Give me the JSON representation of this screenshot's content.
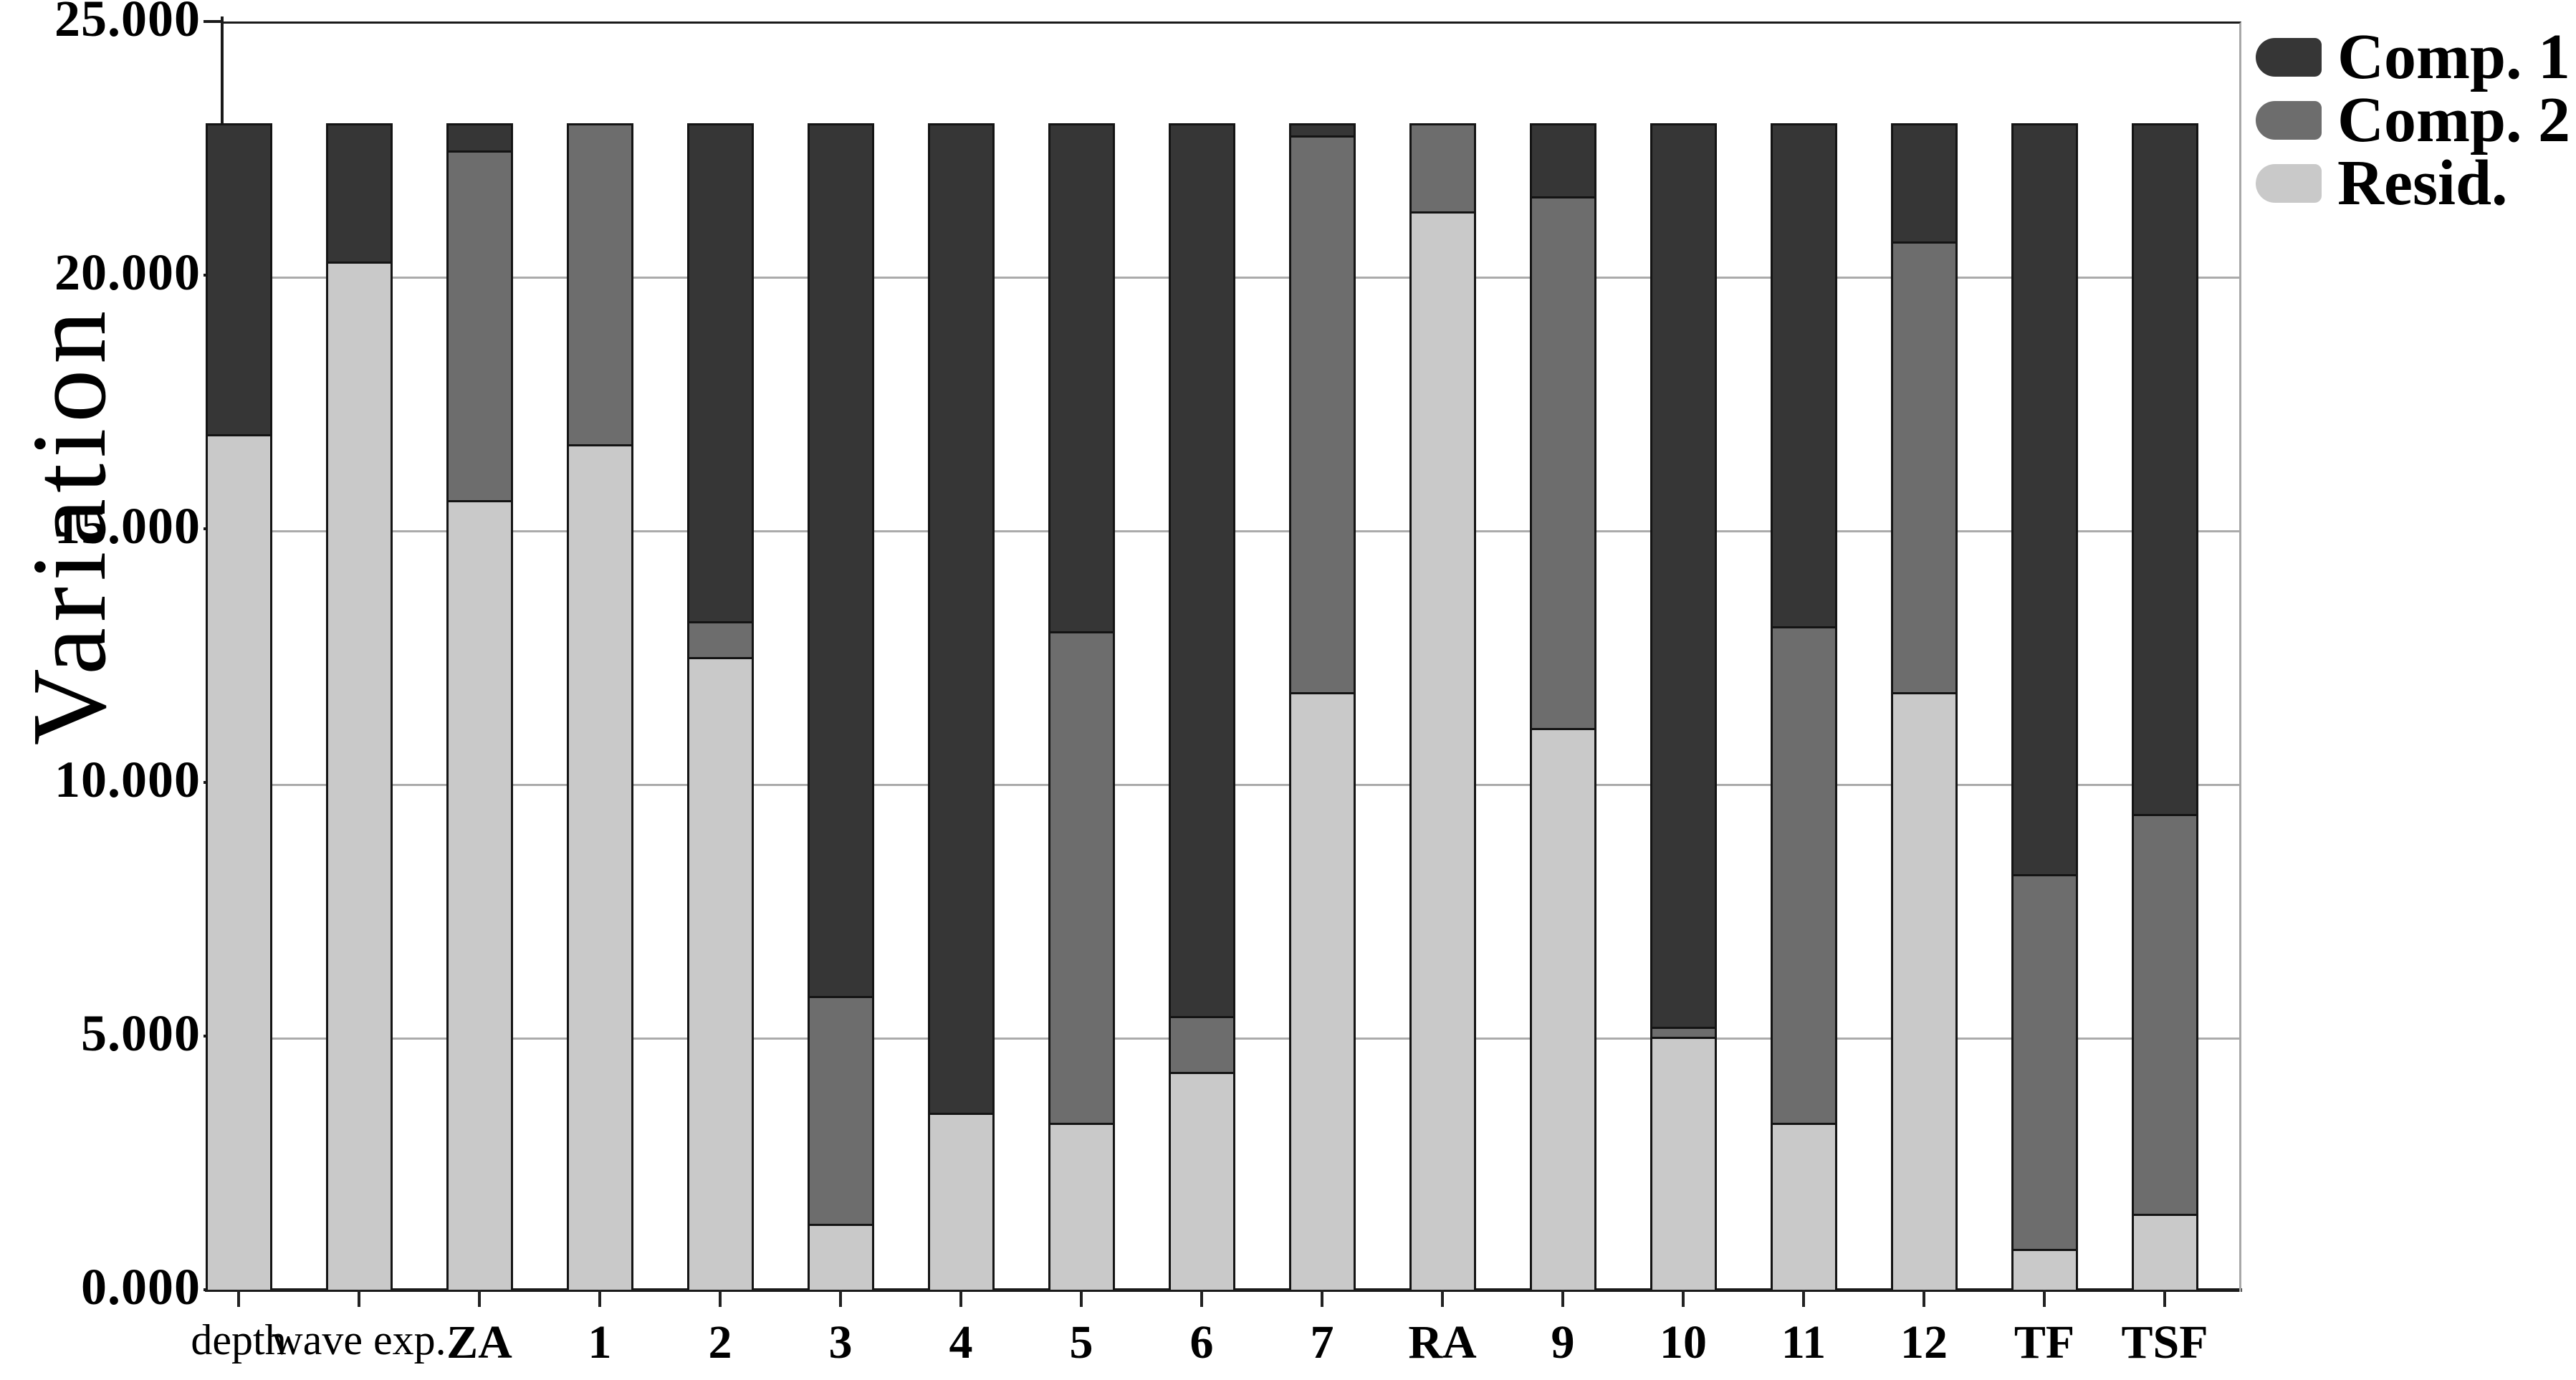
{
  "chart_data": {
    "type": "bar",
    "stacked": true,
    "title": "",
    "xlabel": "",
    "ylabel": "Variation",
    "ylim": [
      0,
      25
    ],
    "ytick_labels": [
      "0.000",
      "5.000",
      "10.000",
      "15.000",
      "20.000",
      "25.000"
    ],
    "yminor_tick_step": 2.5,
    "grid": true,
    "legend_position": "top-right",
    "bar_total": 23.0,
    "categories": [
      "depth",
      "wave exp.",
      "ZA",
      "1",
      "2",
      "3",
      "4",
      "5",
      "6",
      "7",
      "RA",
      "9",
      "10",
      "11",
      "12",
      "TF",
      "TSF"
    ],
    "category_label_styles": [
      "plain",
      "plain",
      "bold",
      "bold",
      "bold",
      "bold",
      "bold",
      "bold",
      "bold",
      "bold",
      "bold",
      "bold",
      "bold",
      "bold",
      "bold",
      "bold",
      "bold"
    ],
    "series": [
      {
        "name": "Comp. 1",
        "color": "#363636",
        "values": [
          6.1,
          2.7,
          0.5,
          0.0,
          9.8,
          17.2,
          19.5,
          10.0,
          17.6,
          0.2,
          0.0,
          1.4,
          17.8,
          9.9,
          2.3,
          14.8,
          13.6
        ]
      },
      {
        "name": "Comp. 2",
        "color": "#6d6d6d",
        "values": [
          0.0,
          0.0,
          6.9,
          6.3,
          0.7,
          4.5,
          0.0,
          9.7,
          1.1,
          11.0,
          1.7,
          10.5,
          0.2,
          9.8,
          8.9,
          7.4,
          7.9
        ]
      },
      {
        "name": "Resid.",
        "color": "#c9c9c9",
        "values": [
          16.9,
          20.3,
          15.6,
          16.7,
          12.5,
          1.3,
          3.5,
          3.3,
          4.3,
          11.8,
          21.3,
          11.1,
          5.0,
          3.3,
          11.8,
          0.8,
          1.5
        ]
      }
    ]
  }
}
